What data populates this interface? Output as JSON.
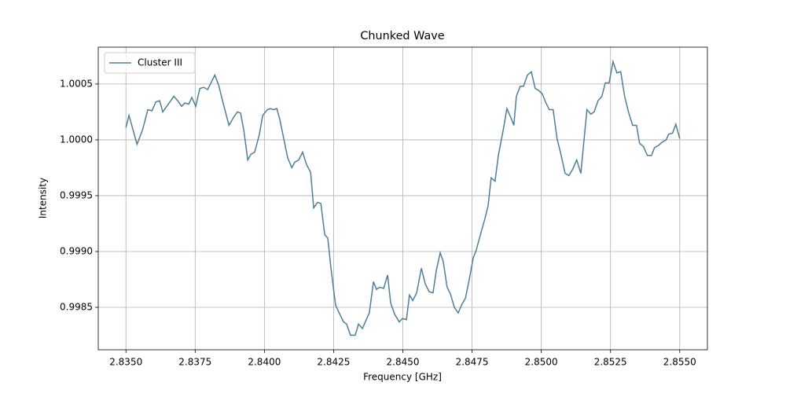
{
  "chart_data": {
    "type": "line",
    "title": "Chunked Wave",
    "x_label": "Frequency [GHz]",
    "y_label": "Intensity",
    "grid": true,
    "legend": "upper left",
    "xlim": [
      2.834,
      2.856
    ],
    "ylim": [
      0.99812,
      1.00083
    ],
    "xticks": [
      {
        "value": 2.835,
        "label": "2.8350"
      },
      2.8375,
      {
        "value": 2.84,
        "label": "2.8400"
      },
      2.8425,
      {
        "value": 2.845,
        "label": "2.8450"
      },
      2.8475,
      {
        "value": 2.85,
        "label": "2.8500"
      },
      2.8525,
      {
        "value": 2.855,
        "label": "2.8550"
      }
    ],
    "yticks": [
      0.9985,
      {
        "value": 0.999,
        "label": "0.9990"
      },
      0.9995,
      {
        "value": 1,
        "label": "1.0000"
      },
      1.0005
    ],
    "x": [
      2.835,
      2.83511,
      2.8354,
      2.8356,
      2.83579,
      2.83594,
      2.83608,
      2.83622,
      2.83633,
      2.83653,
      2.83673,
      2.83687,
      2.83701,
      2.83713,
      2.83727,
      2.83738,
      2.83752,
      2.83767,
      2.83781,
      2.83795,
      2.83821,
      2.83835,
      2.83849,
      2.83872,
      2.83891,
      2.83903,
      2.83914,
      2.83926,
      2.8394,
      2.83951,
      2.83965,
      2.83982,
      2.83994,
      2.84011,
      2.84022,
      2.84033,
      2.84045,
      2.84056,
      2.8407,
      2.84084,
      2.84099,
      2.8411,
      2.84124,
      2.84138,
      2.84152,
      2.84167,
      2.84178,
      2.84192,
      2.84204,
      2.84218,
      2.84229,
      2.8424,
      2.84257,
      2.84272,
      2.84286,
      2.84297,
      2.84311,
      2.84328,
      2.8434,
      2.84354,
      2.84368,
      2.84379,
      2.84394,
      2.84405,
      2.84416,
      2.84431,
      2.84445,
      2.84456,
      2.8447,
      2.84487,
      2.84499,
      2.84513,
      2.84524,
      2.84536,
      2.8455,
      2.84567,
      2.84581,
      2.84595,
      2.84609,
      2.84621,
      2.84635,
      2.84646,
      2.8466,
      2.84672,
      2.84686,
      2.847,
      2.84714,
      2.84726,
      2.8474,
      2.84754,
      2.84765,
      2.84779,
      2.84796,
      2.84808,
      2.84819,
      2.84833,
      2.84845,
      2.84862,
      2.84876,
      2.8489,
      2.84901,
      2.8491,
      2.84924,
      2.84936,
      2.8495,
      2.84964,
      2.84978,
      2.84992,
      2.85004,
      2.85015,
      2.85029,
      2.85043,
      2.85057,
      2.85072,
      2.85086,
      2.851,
      2.85114,
      2.85128,
      2.85143,
      2.85154,
      2.85165,
      2.85179,
      2.85191,
      2.85205,
      2.85219,
      2.85231,
      2.85245,
      2.85259,
      2.85273,
      2.85287,
      2.85301,
      2.85316,
      2.8533,
      2.85344,
      2.85355,
      2.85369,
      2.85383,
      2.85398,
      2.85409,
      2.85423,
      2.85437,
      2.85451,
      2.8546,
      2.85474,
      2.85486,
      2.855
    ],
    "series": [
      {
        "name": "Cluster III",
        "color": "#4e7f96",
        "values": [
          1.00011,
          1.00022,
          0.99996,
          1.00009,
          1.00027,
          1.00026,
          1.00034,
          1.00035,
          1.00025,
          1.00032,
          1.00039,
          1.00035,
          1.0003,
          1.00033,
          1.00032,
          1.00038,
          1.0003,
          1.00046,
          1.00047,
          1.00045,
          1.00058,
          1.00049,
          1.00035,
          1.00013,
          1.00021,
          1.00025,
          1.00024,
          1.00008,
          0.99982,
          0.99987,
          0.99989,
          1.00005,
          1.00022,
          1.00027,
          1.00028,
          1.00027,
          1.00028,
          1.00018,
          1.00001,
          0.99984,
          0.99975,
          0.9998,
          0.99982,
          0.99989,
          0.99978,
          0.99971,
          0.99939,
          0.99944,
          0.99943,
          0.99915,
          0.99912,
          0.99886,
          0.99852,
          0.99844,
          0.99837,
          0.99835,
          0.99825,
          0.99825,
          0.99835,
          0.99831,
          0.99839,
          0.99845,
          0.99873,
          0.99866,
          0.99868,
          0.99867,
          0.99879,
          0.99854,
          0.99844,
          0.99837,
          0.9984,
          0.99839,
          0.99861,
          0.99856,
          0.99863,
          0.99885,
          0.99871,
          0.99864,
          0.99863,
          0.99883,
          0.99899,
          0.99891,
          0.99868,
          0.99862,
          0.9985,
          0.99845,
          0.99853,
          0.99858,
          0.99875,
          0.99894,
          0.99901,
          0.99914,
          0.99929,
          0.99941,
          0.99966,
          0.99963,
          0.99986,
          1.00008,
          1.00028,
          1.0002,
          1.00013,
          1.00039,
          1.00048,
          1.00048,
          1.00058,
          1.00061,
          1.00046,
          1.00044,
          1.00041,
          1.00034,
          1.00027,
          1.00027,
          1.00001,
          0.99986,
          0.9997,
          0.99968,
          0.99974,
          0.99982,
          0.9997,
          0.99999,
          1.00027,
          1.00023,
          1.00025,
          1.00035,
          1.00039,
          1.00051,
          1.00051,
          1.0007,
          1.0006,
          1.00061,
          1.00039,
          1.00024,
          1.00013,
          1.00013,
          0.99997,
          0.99994,
          0.99986,
          0.99986,
          0.99993,
          0.99995,
          0.99998,
          1.0,
          1.00005,
          1.00006,
          1.00014,
          1.00001
        ]
      }
    ]
  }
}
